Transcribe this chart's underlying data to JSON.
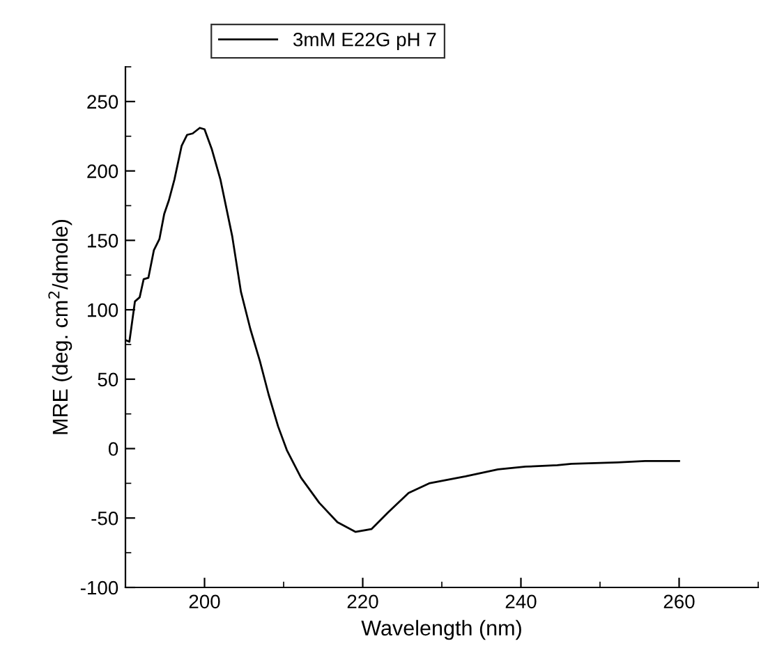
{
  "chart_data": {
    "type": "line",
    "xlabel": "Wavelength (nm)",
    "ylabel": "MRE (deg. cm$^{2}$/dmole)",
    "xlim": [
      190,
      270
    ],
    "xticks": [
      200,
      220,
      240,
      260
    ],
    "ylim": [
      -100,
      275
    ],
    "yticks": [
      -100,
      -50,
      0,
      50,
      100,
      150,
      200,
      250
    ],
    "grid": false,
    "legend": "top",
    "marker": "none",
    "line_style": "solid",
    "series": [
      {
        "name": "3mM E22G pH 7",
        "color": "#000000",
        "x": [
          190.1,
          190.5,
          191.2,
          191.8,
          192.3,
          192.9,
          193.6,
          194.3,
          194.9,
          195.5,
          196.2,
          197.1,
          197.8,
          198.5,
          199.4,
          200,
          200.9,
          202,
          203.5,
          204.6,
          205.8,
          207,
          208.1,
          209.3,
          210.4,
          212.2,
          214.5,
          216.8,
          219.1,
          221.1,
          223.2,
          225.8,
          228.4,
          233,
          237.1,
          240.6,
          244.6,
          246.4,
          252.2,
          255.7,
          260
        ],
        "values": [
          78,
          77,
          106,
          109,
          122,
          123,
          143,
          151,
          169,
          179,
          194,
          218,
          226,
          227,
          231,
          230,
          216,
          194,
          153,
          113,
          86,
          63,
          39,
          16,
          -1,
          -21,
          -39,
          -53,
          -60,
          -58,
          -46,
          -32,
          -25,
          -20,
          -15,
          -13,
          -12,
          -11,
          -10,
          -9,
          -9
        ]
      }
    ]
  }
}
